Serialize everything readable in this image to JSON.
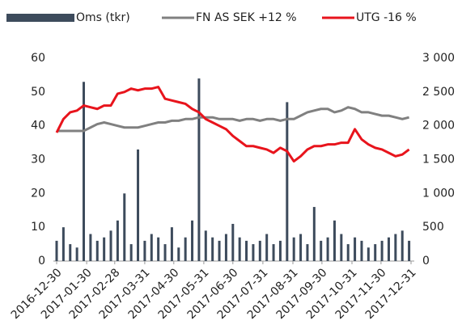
{
  "chart_data": {
    "type": "bar-line",
    "x": [
      "2016-12-30",
      "2017-01-06",
      "2017-01-13",
      "2017-01-20",
      "2017-01-27",
      "2017-02-03",
      "2017-02-10",
      "2017-02-17",
      "2017-02-24",
      "2017-03-03",
      "2017-03-10",
      "2017-03-17",
      "2017-03-24",
      "2017-03-31",
      "2017-04-07",
      "2017-04-14",
      "2017-04-21",
      "2017-04-28",
      "2017-05-05",
      "2017-05-12",
      "2017-05-19",
      "2017-05-26",
      "2017-06-02",
      "2017-06-09",
      "2017-06-16",
      "2017-06-23",
      "2017-06-30",
      "2017-07-07",
      "2017-07-14",
      "2017-07-21",
      "2017-07-28",
      "2017-08-04",
      "2017-08-11",
      "2017-08-18",
      "2017-08-25",
      "2017-09-01",
      "2017-09-08",
      "2017-09-15",
      "2017-09-22",
      "2017-09-29",
      "2017-10-06",
      "2017-10-13",
      "2017-10-20",
      "2017-10-27",
      "2017-11-03",
      "2017-11-10",
      "2017-11-17",
      "2017-11-24",
      "2017-12-01",
      "2017-12-08",
      "2017-12-15",
      "2017-12-22",
      "2017-12-29"
    ],
    "series": [
      {
        "name": "Oms (tkr)",
        "kind": "bar",
        "axis": "y2",
        "color": "#3d4b5c",
        "values": [
          300,
          500,
          250,
          200,
          2650,
          400,
          300,
          350,
          450,
          600,
          1000,
          250,
          1650,
          300,
          400,
          350,
          250,
          500,
          200,
          350,
          600,
          2700,
          450,
          350,
          300,
          400,
          550,
          350,
          300,
          250,
          300,
          400,
          250,
          300,
          2350,
          350,
          400,
          250,
          800,
          300,
          350,
          600,
          400,
          250,
          350,
          300,
          200,
          250,
          300,
          350,
          400,
          450,
          300
        ]
      },
      {
        "name": "FN AS SEK +12 %",
        "kind": "line",
        "color": "#808080",
        "values": [
          38.5,
          38.5,
          38.5,
          38.5,
          38.5,
          39.5,
          40.5,
          41,
          40.5,
          40,
          39.5,
          39.5,
          39.5,
          40,
          40.5,
          41,
          41,
          41.5,
          41.5,
          42,
          42,
          42.5,
          42.5,
          42.5,
          42,
          42,
          42,
          41.5,
          42,
          42,
          41.5,
          42,
          42,
          41.5,
          42,
          42,
          43,
          44,
          44.5,
          45,
          45,
          44,
          44.5,
          45.5,
          45,
          44,
          44,
          43.5,
          43,
          43,
          42.5,
          42,
          42.5
        ]
      },
      {
        "name": "UTG -16 %",
        "kind": "line",
        "color": "#e8141c",
        "values": [
          38,
          42,
          44,
          44.5,
          46,
          45.5,
          45,
          46,
          46,
          49.5,
          50,
          51,
          50.5,
          51,
          51,
          51.5,
          48,
          47.5,
          47,
          46.5,
          45,
          44,
          42,
          41,
          40,
          39,
          37,
          35.5,
          34,
          34,
          33.5,
          33,
          32,
          33.5,
          32.5,
          29.5,
          31,
          33,
          34,
          34,
          34.5,
          34.5,
          35,
          35,
          39,
          36,
          34.5,
          33.5,
          33,
          32,
          31,
          31.5,
          33
        ]
      }
    ],
    "xlim": [
      "2016-12-30",
      "2017-12-31"
    ],
    "xticks": [
      "2016-12-30",
      "2017-01-30",
      "2017-02-28",
      "2017-03-31",
      "2017-04-30",
      "2017-05-31",
      "2017-06-30",
      "2017-07-31",
      "2017-08-31",
      "2017-09-30",
      "2017-10-31",
      "2017-11-30",
      "2017-12-31"
    ],
    "ylim": [
      0,
      60
    ],
    "yticks": [
      0,
      10,
      20,
      30,
      40,
      50,
      60
    ],
    "y2lim": [
      0,
      3000
    ],
    "y2ticks": [
      0,
      500,
      {
        "value": 1000,
        "label": "1 000"
      },
      {
        "value": 1500,
        "label": "1 500"
      },
      {
        "value": 2000,
        "label": "2 000"
      },
      {
        "value": 2500,
        "label": "2 500"
      },
      {
        "value": 3000,
        "label": "3 000"
      }
    ],
    "grid": false,
    "legend": "top"
  }
}
